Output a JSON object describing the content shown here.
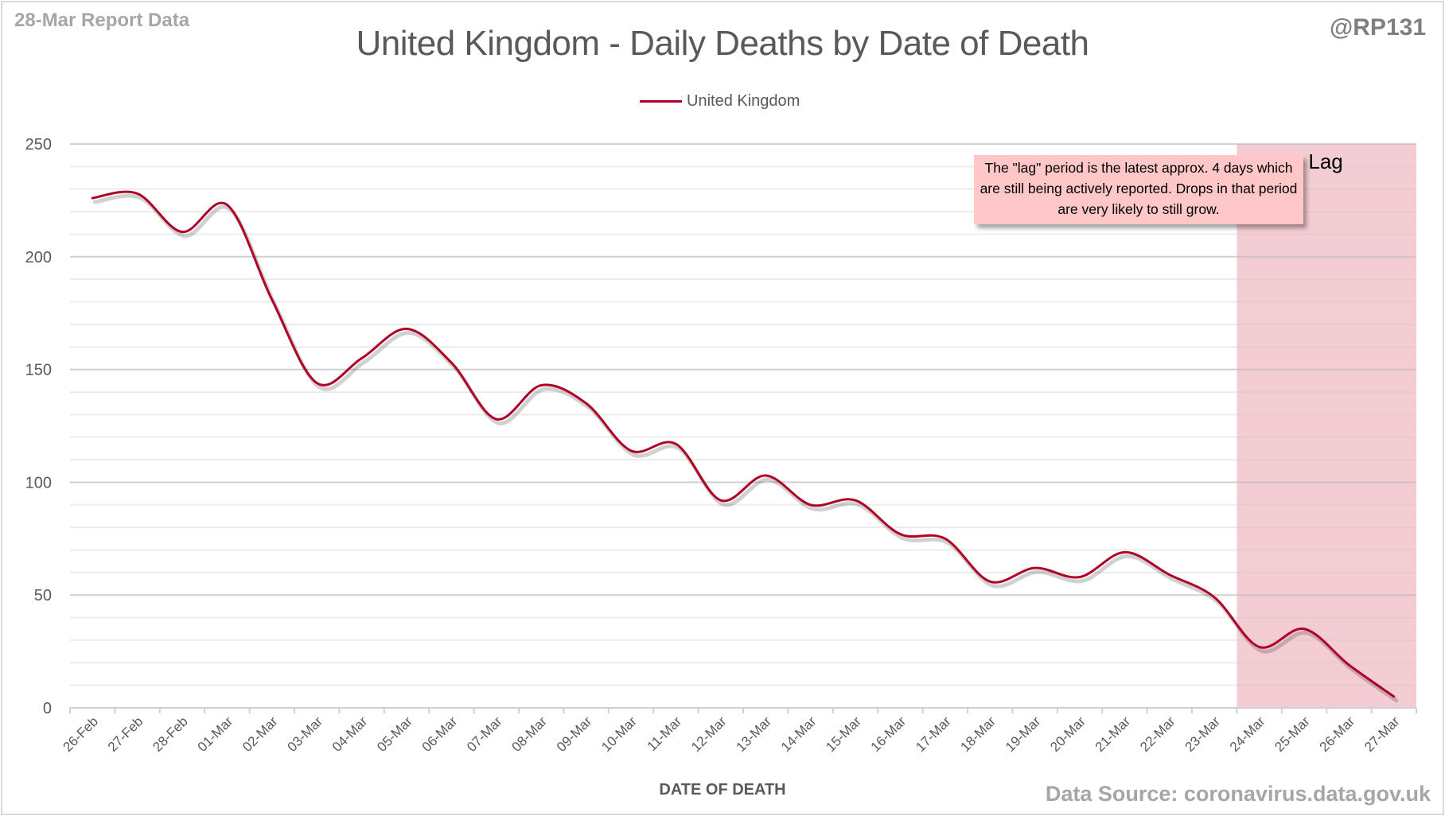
{
  "header": {
    "report_label": "28-Mar Report Data",
    "handle": "@RP131",
    "source": "Data Source: coronavirus.data.gov.uk"
  },
  "chart_data": {
    "type": "line",
    "title": "United Kingdom - Daily Deaths by Date of Death",
    "xlabel": "DATE OF DEATH",
    "ylabel": "",
    "ylim": [
      0,
      250
    ],
    "yticks": [
      0,
      50,
      100,
      150,
      200,
      250
    ],
    "minor_grid_step": 10,
    "grid": true,
    "smooth": true,
    "legend_position": "top-center",
    "categories": [
      "26-Feb",
      "27-Feb",
      "28-Feb",
      "01-Mar",
      "02-Mar",
      "03-Mar",
      "04-Mar",
      "05-Mar",
      "06-Mar",
      "07-Mar",
      "08-Mar",
      "09-Mar",
      "10-Mar",
      "11-Mar",
      "12-Mar",
      "13-Mar",
      "14-Mar",
      "15-Mar",
      "16-Mar",
      "17-Mar",
      "18-Mar",
      "19-Mar",
      "20-Mar",
      "21-Mar",
      "22-Mar",
      "23-Mar",
      "24-Mar",
      "25-Mar",
      "26-Mar",
      "27-Mar"
    ],
    "series": [
      {
        "name": "United Kingdom",
        "color": "#b10026",
        "values": [
          226,
          228,
          211,
          223,
          181,
          144,
          155,
          168,
          153,
          128,
          143,
          135,
          114,
          117,
          92,
          103,
          90,
          92,
          77,
          75,
          56,
          62,
          58,
          69,
          59,
          49,
          27,
          35,
          19,
          5
        ]
      }
    ],
    "shaded_region": {
      "label": "Lag",
      "from": "24-Mar",
      "to": "27-Mar",
      "color": "#f4ccd4"
    },
    "annotation": "The \"lag\" period is the latest approx. 4 days which are still being actively reported. Drops in that period are very likely to still grow."
  }
}
